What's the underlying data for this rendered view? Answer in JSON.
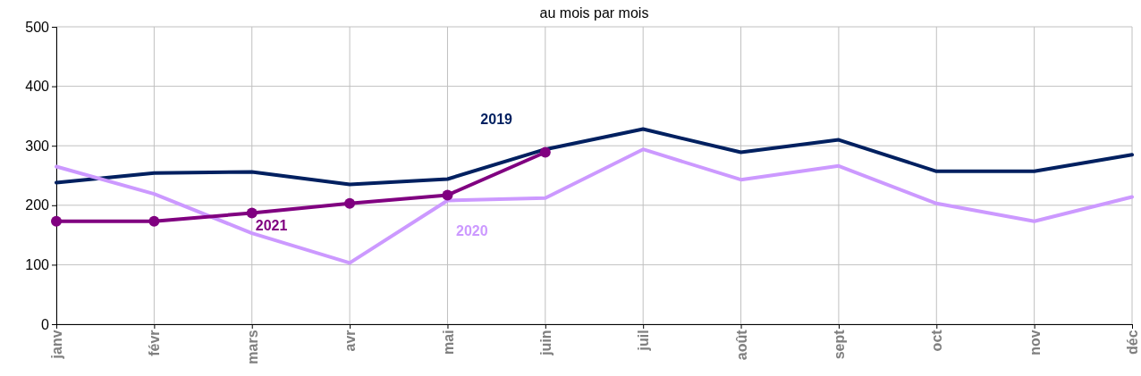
{
  "chart_data": {
    "type": "line",
    "title": "au mois par mois",
    "categories": [
      "janv",
      "févr",
      "mars",
      "avr",
      "mai",
      "juin",
      "juil",
      "août",
      "sept",
      "oct",
      "nov",
      "déc"
    ],
    "series": [
      {
        "name": "2019",
        "color": "#002060",
        "marker": "none",
        "values": [
          238,
          254,
          256,
          235,
          244,
          294,
          328,
          289,
          310,
          257,
          257,
          285
        ]
      },
      {
        "name": "2020",
        "color": "#cc99ff",
        "marker": "none",
        "values": [
          265,
          219,
          153,
          103,
          208,
          212,
          294,
          243,
          266,
          203,
          173,
          214
        ]
      },
      {
        "name": "2021",
        "color": "#800080",
        "marker": "circle",
        "values": [
          173,
          173,
          187,
          203,
          217,
          289,
          null,
          null,
          null,
          null,
          null,
          null
        ]
      }
    ],
    "ylim": [
      0,
      500
    ],
    "yticks": [
      0,
      100,
      200,
      300,
      400,
      500
    ],
    "grid": true
  }
}
